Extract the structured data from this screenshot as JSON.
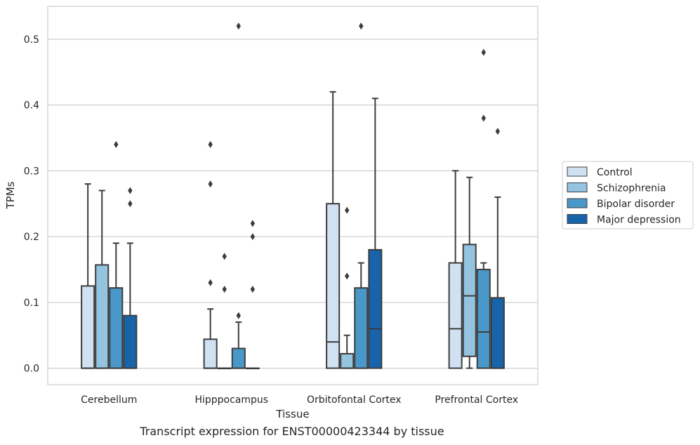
{
  "caption": "Transcript expression for ENST00000423344 by tissue",
  "chart_data": {
    "type": "box",
    "xlabel": "Tissue",
    "ylabel": "TPMs",
    "ylim": [
      -0.025,
      0.55
    ],
    "yticks": [
      0.0,
      0.1,
      0.2,
      0.3,
      0.4,
      0.5
    ],
    "ytick_labels": [
      "0.0",
      "0.1",
      "0.2",
      "0.3",
      "0.4",
      "0.5"
    ],
    "grid": "horizontal",
    "legend_position": "outside-right",
    "categories": [
      "Cerebellum",
      "Hipppocampus",
      "Orbitofontal Cortex",
      "Prefrontal Cortex"
    ],
    "series": [
      {
        "name": "Control",
        "color": "#d0e1f2",
        "boxes": [
          {
            "q1": 0.0,
            "median": 0.0,
            "q3": 0.125,
            "whislo": 0.0,
            "whishi": 0.28,
            "fliers": []
          },
          {
            "q1": 0.0,
            "median": 0.0,
            "q3": 0.044,
            "whislo": 0.0,
            "whishi": 0.09,
            "fliers": [
              0.13,
              0.28,
              0.34
            ]
          },
          {
            "q1": 0.0,
            "median": 0.04,
            "q3": 0.25,
            "whislo": 0.0,
            "whishi": 0.42,
            "fliers": []
          },
          {
            "q1": 0.0,
            "median": 0.06,
            "q3": 0.16,
            "whislo": 0.0,
            "whishi": 0.3,
            "fliers": []
          }
        ]
      },
      {
        "name": "Schizophrenia",
        "color": "#94c4df",
        "boxes": [
          {
            "q1": 0.0,
            "median": 0.0,
            "q3": 0.157,
            "whislo": 0.0,
            "whishi": 0.27,
            "fliers": []
          },
          {
            "q1": 0.0,
            "median": 0.0,
            "q3": 0.0,
            "whislo": 0.0,
            "whishi": 0.0,
            "fliers": [
              0.12,
              0.17
            ]
          },
          {
            "q1": 0.0,
            "median": 0.0,
            "q3": 0.022,
            "whislo": 0.0,
            "whishi": 0.05,
            "fliers": [
              0.14,
              0.24
            ]
          },
          {
            "q1": 0.018,
            "median": 0.11,
            "q3": 0.188,
            "whislo": 0.0,
            "whishi": 0.29,
            "fliers": []
          }
        ]
      },
      {
        "name": "Bipolar disorder",
        "color": "#4a98c9",
        "boxes": [
          {
            "q1": 0.0,
            "median": 0.0,
            "q3": 0.122,
            "whislo": 0.0,
            "whishi": 0.19,
            "fliers": [
              0.34
            ]
          },
          {
            "q1": 0.0,
            "median": 0.0,
            "q3": 0.03,
            "whislo": 0.0,
            "whishi": 0.07,
            "fliers": [
              0.08,
              0.52
            ]
          },
          {
            "q1": 0.0,
            "median": 0.0,
            "q3": 0.122,
            "whislo": 0.0,
            "whishi": 0.16,
            "fliers": [
              0.52
            ]
          },
          {
            "q1": 0.0,
            "median": 0.055,
            "q3": 0.15,
            "whislo": 0.0,
            "whishi": 0.16,
            "fliers": [
              0.38,
              0.48
            ]
          }
        ]
      },
      {
        "name": "Major depression",
        "color": "#1764ab",
        "boxes": [
          {
            "q1": 0.0,
            "median": 0.0,
            "q3": 0.08,
            "whislo": 0.0,
            "whishi": 0.19,
            "fliers": [
              0.25,
              0.27
            ]
          },
          {
            "q1": 0.0,
            "median": 0.0,
            "q3": 0.0,
            "whislo": 0.0,
            "whishi": 0.0,
            "fliers": [
              0.12,
              0.2,
              0.22
            ]
          },
          {
            "q1": 0.0,
            "median": 0.06,
            "q3": 0.18,
            "whislo": 0.0,
            "whishi": 0.41,
            "fliers": []
          },
          {
            "q1": 0.0,
            "median": 0.0,
            "q3": 0.107,
            "whislo": 0.0,
            "whishi": 0.26,
            "fliers": [
              0.36
            ]
          }
        ]
      }
    ]
  }
}
